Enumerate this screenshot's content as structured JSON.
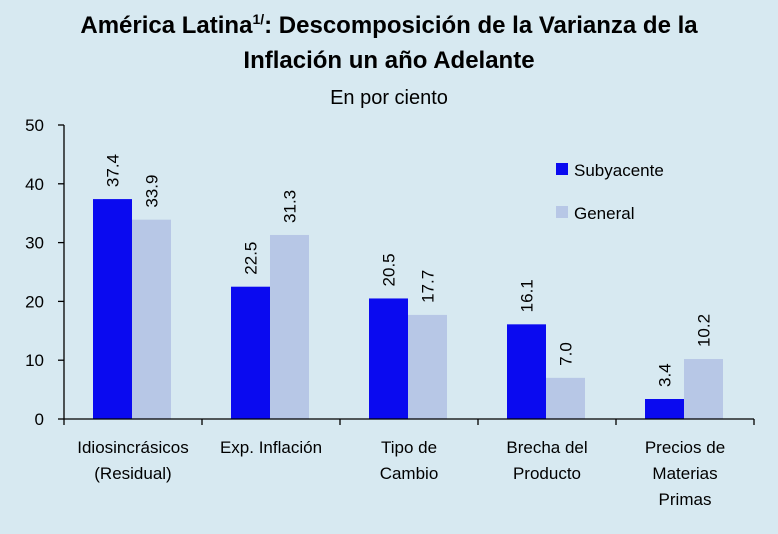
{
  "header": {
    "title_part1": "América Latina",
    "title_sup": "1/",
    "title_part2": ": Descomposición de la Varianza de la",
    "title_line2": "Inflación un año Adelante",
    "subtitle": "En por ciento"
  },
  "colors": {
    "background": "#d7e9f1",
    "subyacente": "#0a0af0",
    "general": "#b7c7e6"
  },
  "chart_data": {
    "type": "bar",
    "ylim": [
      0,
      50
    ],
    "yticks": [
      "0",
      "10",
      "20",
      "30",
      "40",
      "50"
    ],
    "categories": [
      [
        "Idiosincrásicos",
        "(Residual)"
      ],
      [
        "Exp. Inflación"
      ],
      [
        "Tipo de",
        "Cambio"
      ],
      [
        "Brecha del",
        "Producto"
      ],
      [
        "Precios de",
        "Materias",
        "Primas"
      ]
    ],
    "series": [
      {
        "name": "Subyacente",
        "values": [
          37.4,
          22.5,
          20.5,
          16.1,
          3.4
        ],
        "labels": [
          "37.4",
          "22.5",
          "20.5",
          "16.1",
          "3.4"
        ]
      },
      {
        "name": "General",
        "values": [
          33.9,
          31.3,
          17.7,
          7.0,
          10.2
        ],
        "labels": [
          "33.9",
          "31.3",
          "17.7",
          "7.0",
          "10.2"
        ]
      }
    ],
    "legend_position": "right"
  }
}
